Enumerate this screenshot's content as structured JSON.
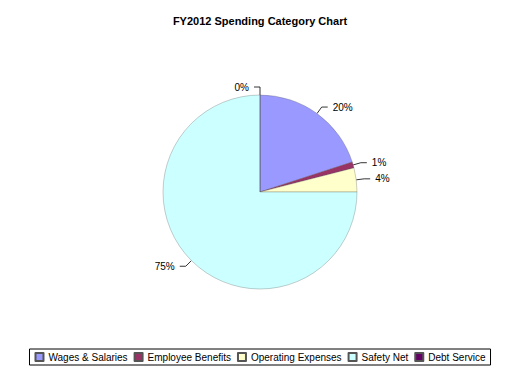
{
  "chart_data": {
    "type": "pie",
    "title": "FY2012 Spending Category Chart",
    "categories": [
      "Wages & Salaries",
      "Employee Benefits",
      "Operating Expenses",
      "Safety Net",
      "Debt Service"
    ],
    "values": [
      20,
      1,
      4,
      75,
      0
    ],
    "value_labels": [
      "20%",
      "1%",
      "4%",
      "75%",
      "0%"
    ],
    "colors": [
      "#9999ff",
      "#993366",
      "#ffffcc",
      "#ccffff",
      "#660066"
    ],
    "legend": "bottom",
    "data_labels": true
  }
}
